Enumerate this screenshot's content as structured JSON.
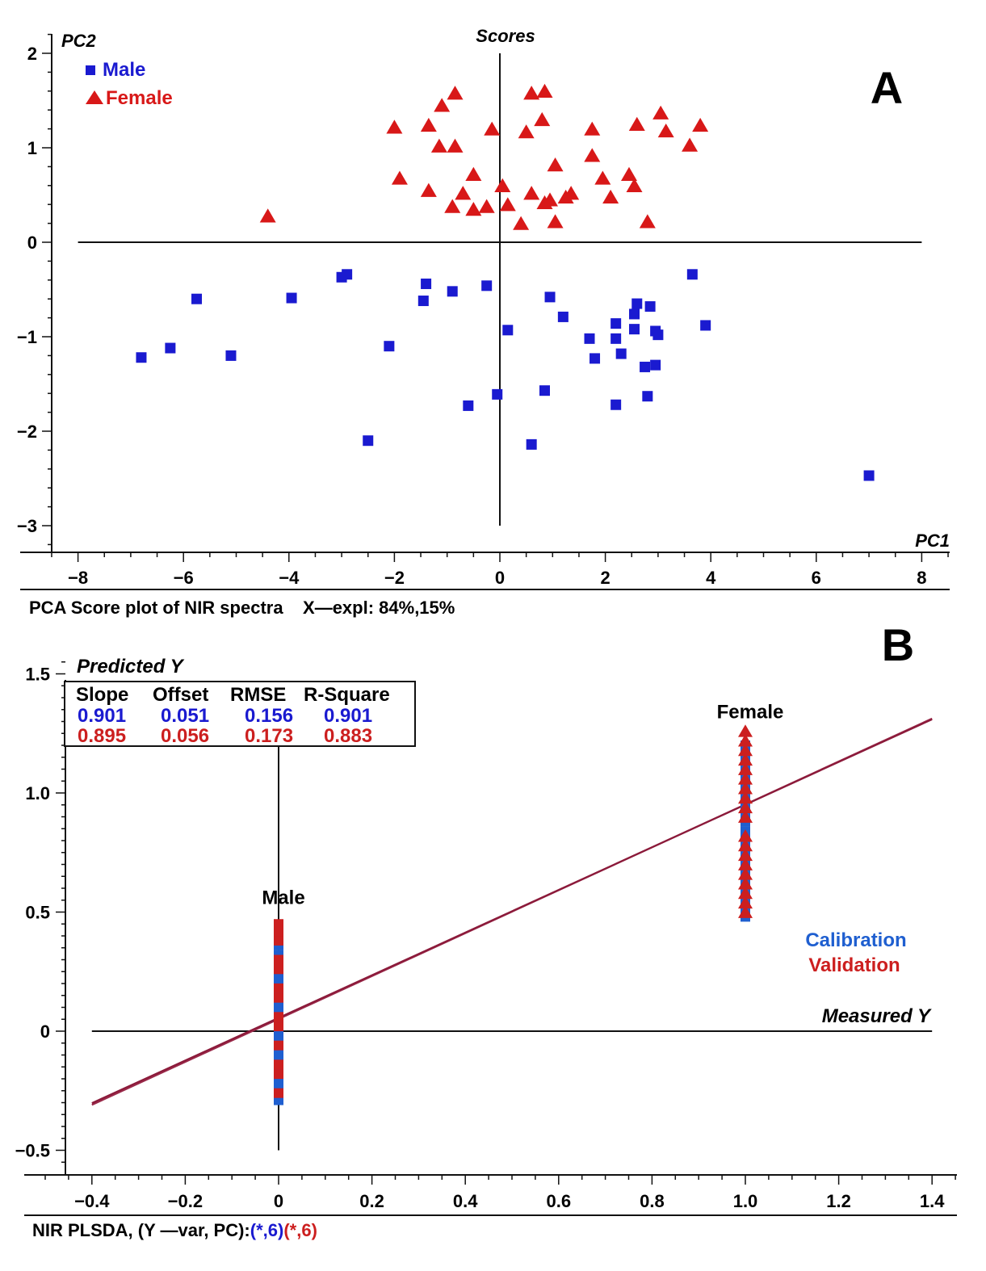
{
  "colors": {
    "male": "#1a1ad0",
    "female": "#d81818",
    "calibration": "#1f5fd0",
    "validation": "#cc1f1f",
    "regression_line": "#8b1a3a",
    "axis": "#111111"
  },
  "chart_data": [
    {
      "id": "A",
      "type": "scatter",
      "panel_letter": "A",
      "title": "Scores",
      "xlabel": "PC1",
      "ylabel": "PC2",
      "caption": "PCA Score plot of NIR spectra    X—expl: 84%,15%",
      "xlim": [
        -8.5,
        8.5
      ],
      "ylim": [
        -3.25,
        2.25
      ],
      "xticks": [
        -8,
        -6,
        -4,
        -2,
        0,
        2,
        4,
        6,
        8
      ],
      "xtick_labels": [
        "−8",
        "−6",
        "−4",
        "−2",
        "0",
        "2",
        "4",
        "6",
        "8"
      ],
      "yticks": [
        2,
        1,
        0,
        -1,
        -2,
        -3
      ],
      "ytick_labels": [
        "2",
        "1",
        "0",
        "−1",
        "−2",
        "−3"
      ],
      "legend": {
        "position": "top-left",
        "entries": [
          {
            "name": "Male",
            "marker": "square"
          },
          {
            "name": "Female",
            "marker": "triangle"
          }
        ]
      },
      "series": [
        {
          "name": "Female",
          "marker": "triangle",
          "points": [
            [
              -4.4,
              0.28
            ],
            [
              -2,
              1.22
            ],
            [
              -1.9,
              0.68
            ],
            [
              -1.35,
              1.24
            ],
            [
              -1.35,
              0.55
            ],
            [
              -1.1,
              1.45
            ],
            [
              -1.15,
              1.02
            ],
            [
              -0.85,
              1.58
            ],
            [
              -0.9,
              0.38
            ],
            [
              -0.85,
              1.02
            ],
            [
              -0.7,
              0.52
            ],
            [
              -0.5,
              0.72
            ],
            [
              -0.5,
              0.35
            ],
            [
              -0.25,
              0.38
            ],
            [
              -0.15,
              1.2
            ],
            [
              0.05,
              0.6
            ],
            [
              0.15,
              0.4
            ],
            [
              0.4,
              0.2
            ],
            [
              0.5,
              1.17
            ],
            [
              0.6,
              0.52
            ],
            [
              0.6,
              1.58
            ],
            [
              0.8,
              1.3
            ],
            [
              0.85,
              1.6
            ],
            [
              0.85,
              0.42
            ],
            [
              0.95,
              0.45
            ],
            [
              1.05,
              0.82
            ],
            [
              1.05,
              0.22
            ],
            [
              1.25,
              0.48
            ],
            [
              1.35,
              0.52
            ],
            [
              1.75,
              1.2
            ],
            [
              1.75,
              0.92
            ],
            [
              1.95,
              0.68
            ],
            [
              2.1,
              0.48
            ],
            [
              2.45,
              0.72
            ],
            [
              2.6,
              1.25
            ],
            [
              2.55,
              0.6
            ],
            [
              2.8,
              0.22
            ],
            [
              3.05,
              1.37
            ],
            [
              3.15,
              1.18
            ],
            [
              3.6,
              1.03
            ],
            [
              3.8,
              1.24
            ]
          ]
        },
        {
          "name": "Male",
          "marker": "square",
          "points": [
            [
              -6.8,
              -1.22
            ],
            [
              -6.25,
              -1.12
            ],
            [
              -5.75,
              -0.6
            ],
            [
              -5.1,
              -1.2
            ],
            [
              -3.95,
              -0.59
            ],
            [
              -3,
              -0.37
            ],
            [
              -2.9,
              -0.34
            ],
            [
              -2.5,
              -2.1
            ],
            [
              -2.1,
              -1.1
            ],
            [
              -1.4,
              -0.44
            ],
            [
              -1.45,
              -0.62
            ],
            [
              -0.9,
              -0.52
            ],
            [
              -0.6,
              -1.73
            ],
            [
              -0.25,
              -0.46
            ],
            [
              -0.05,
              -1.61
            ],
            [
              0.15,
              -0.93
            ],
            [
              0.6,
              -2.14
            ],
            [
              0.85,
              -1.57
            ],
            [
              0.95,
              -0.58
            ],
            [
              1.2,
              -0.79
            ],
            [
              1.7,
              -1.02
            ],
            [
              1.8,
              -1.23
            ],
            [
              2.2,
              -0.86
            ],
            [
              2.2,
              -1.02
            ],
            [
              2.2,
              -1.72
            ],
            [
              2.3,
              -1.18
            ],
            [
              2.55,
              -0.92
            ],
            [
              2.55,
              -0.76
            ],
            [
              2.6,
              -0.65
            ],
            [
              2.75,
              -1.32
            ],
            [
              2.8,
              -1.63
            ],
            [
              2.85,
              -0.68
            ],
            [
              2.95,
              -1.3
            ],
            [
              3,
              -0.98
            ],
            [
              2.95,
              -0.94
            ],
            [
              3.65,
              -0.34
            ],
            [
              3.9,
              -0.88
            ],
            [
              7,
              -2.47
            ]
          ]
        }
      ]
    },
    {
      "id": "B",
      "type": "scatter",
      "panel_letter": "B",
      "title": "Predicted Y",
      "xlabel": "Measured Y",
      "caption_prefix": "NIR PLSDA, (Y —var, PC):",
      "caption_cal": "(*,6)",
      "caption_val": "(*,6)",
      "xlim": [
        -0.5,
        1.45
      ],
      "ylim": [
        -0.55,
        1.55
      ],
      "xticks": [
        -0.4,
        -0.2,
        0,
        0.2,
        0.4,
        0.6,
        0.8,
        1.0,
        1.2,
        1.4
      ],
      "xtick_labels": [
        "−0.4",
        "−0.2",
        "0",
        "0.2",
        "0.4",
        "0.6",
        "0.8",
        "1.0",
        "1.2",
        "1.4"
      ],
      "yticks": [
        1.5,
        1.0,
        0.5,
        0,
        -0.5
      ],
      "ytick_labels": [
        "1.5",
        "1.0",
        "0.5",
        "0",
        "−0.5"
      ],
      "stats_table": {
        "headers": [
          "Slope",
          "Offset",
          "RMSE",
          "R-Square"
        ],
        "calibration": [
          "0.901",
          "0.051",
          "0.156",
          "0.901"
        ],
        "validation": [
          "0.895",
          "0.056",
          "0.173",
          "0.883"
        ]
      },
      "group_labels": [
        {
          "text": "Male",
          "x": 0,
          "y": 0.5
        },
        {
          "text": "Female",
          "x": 1,
          "y": 1.28
        }
      ],
      "legend": {
        "position": "right",
        "entries": [
          "Calibration",
          "Validation"
        ]
      },
      "regression_lines": [
        {
          "name": "Calibration",
          "slope": 0.901,
          "offset": 0.051
        },
        {
          "name": "Validation",
          "slope": 0.895,
          "offset": 0.056
        }
      ],
      "series": [
        {
          "name": "Calibration",
          "marker": "square",
          "x": 0,
          "y_values": [
            -0.29,
            -0.24,
            -0.2,
            -0.16,
            -0.12,
            -0.08,
            -0.04,
            0,
            0.04,
            0.08,
            0.12,
            0.16,
            0.2,
            0.24,
            0.28,
            0.32,
            0.36,
            0.4,
            0.44
          ]
        },
        {
          "name": "Calibration",
          "marker": "square",
          "x": 1,
          "y_values": [
            0.48,
            0.52,
            0.56,
            0.6,
            0.64,
            0.68,
            0.72,
            0.76,
            0.8,
            0.84,
            0.88,
            0.92,
            0.96,
            1.0,
            1.04,
            1.08,
            1.12,
            1.16,
            1.2
          ]
        },
        {
          "name": "Validation",
          "marker": "square",
          "x": 0,
          "y_values": [
            -0.26,
            -0.18,
            -0.14,
            -0.06,
            0.02,
            0.06,
            0.14,
            0.18,
            0.26,
            0.3,
            0.38,
            0.42,
            0.45
          ]
        },
        {
          "name": "Validation",
          "marker": "triangle",
          "x": 1,
          "y_values": [
            0.5,
            0.54,
            0.58,
            0.62,
            0.66,
            0.7,
            0.74,
            0.78,
            0.82,
            0.9,
            0.94,
            0.98,
            1.02,
            1.06,
            1.1,
            1.14,
            1.18,
            1.22,
            1.26
          ]
        }
      ]
    }
  ]
}
